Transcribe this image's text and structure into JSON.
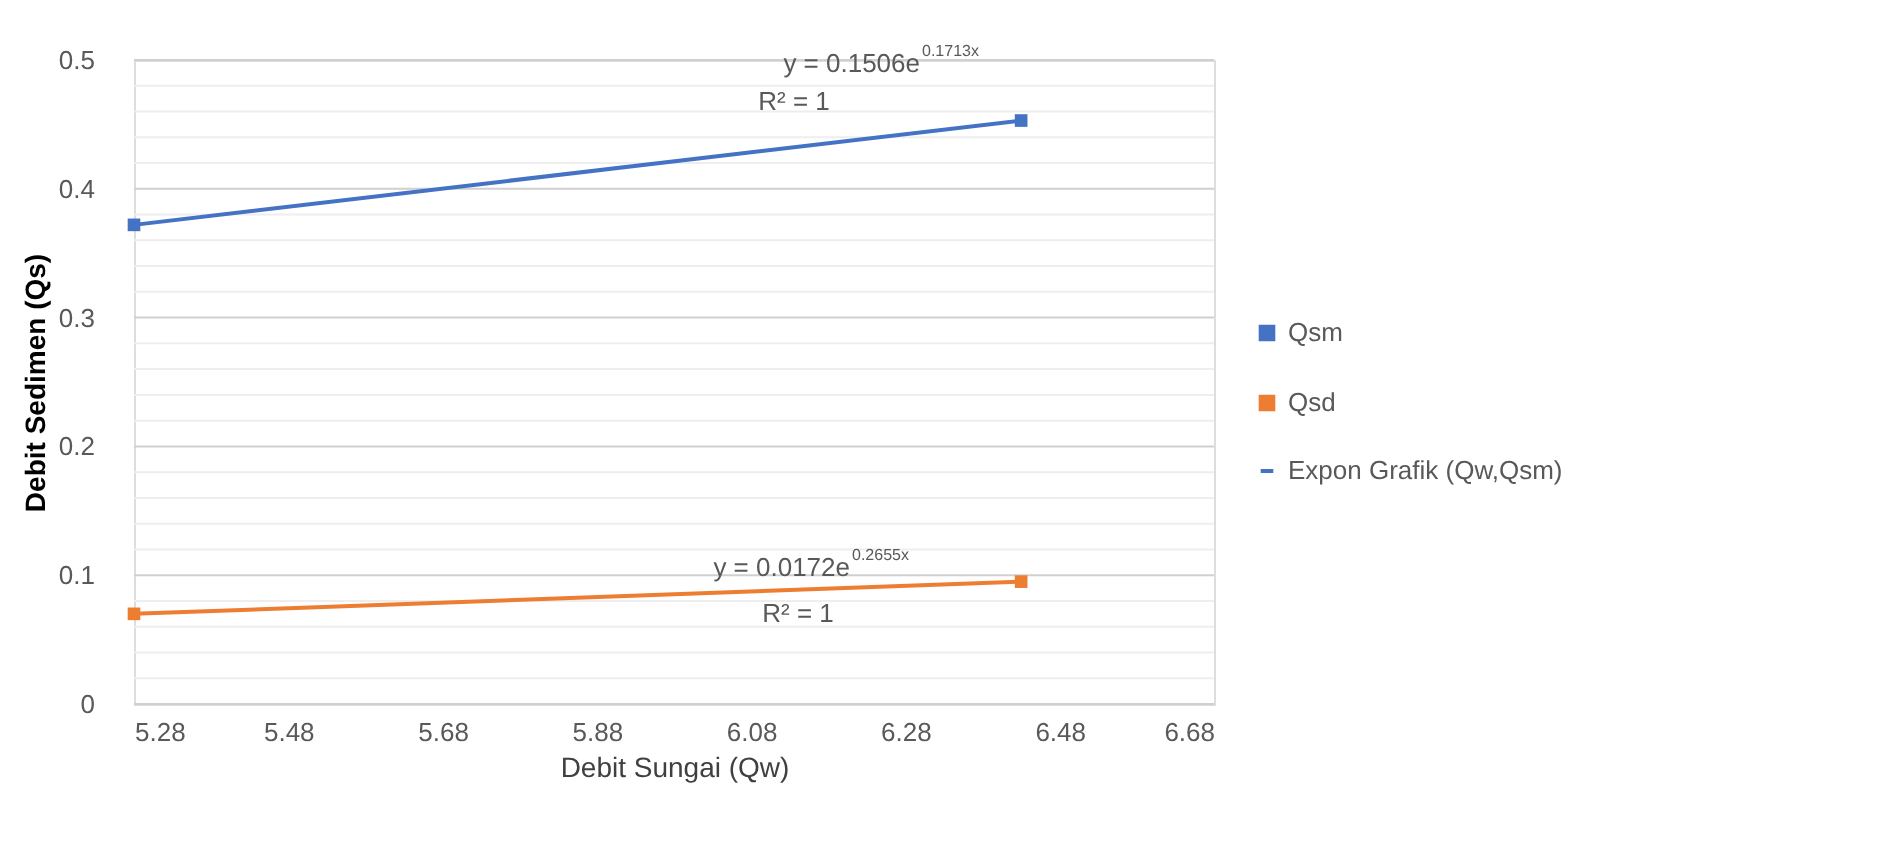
{
  "chart_data": {
    "type": "scatter",
    "xlabel": "Debit Sungai (Qw)",
    "ylabel": "Debit Sedimen (Qs)",
    "xlim": [
      5.28,
      6.68
    ],
    "xticks": [
      5.28,
      5.48,
      5.68,
      5.88,
      6.08,
      6.28,
      6.48,
      6.68
    ],
    "ylim": [
      0,
      0.5
    ],
    "yticks": [
      0,
      {
        "value": 0.02,
        "label": null
      },
      {
        "value": 0.04,
        "label": null
      },
      {
        "value": 0.06,
        "label": null
      },
      {
        "value": 0.08,
        "label": null
      },
      0.1,
      {
        "value": 0.12,
        "label": null
      },
      {
        "value": 0.14,
        "label": null
      },
      {
        "value": 0.16,
        "label": null
      },
      {
        "value": 0.18,
        "label": null
      },
      0.2,
      {
        "value": 0.22,
        "label": null
      },
      {
        "value": 0.24,
        "label": null
      },
      {
        "value": 0.26,
        "label": null
      },
      {
        "value": 0.28,
        "label": null
      },
      0.3,
      {
        "value": 0.32,
        "label": null
      },
      {
        "value": 0.34,
        "label": null
      },
      {
        "value": 0.36,
        "label": null
      },
      {
        "value": 0.38,
        "label": null
      },
      0.4,
      {
        "value": 0.42,
        "label": null
      },
      {
        "value": 0.44,
        "label": null
      },
      {
        "value": 0.46,
        "label": null
      },
      {
        "value": 0.48,
        "label": null
      },
      0.5
    ],
    "grid": "y",
    "legend": "right",
    "x": [
      5.28,
      6.43
    ],
    "series": [
      {
        "name": "Qsm",
        "color": "#4472c4",
        "marker": "square",
        "values": [
          0.372,
          0.453
        ]
      },
      {
        "name": "Qsd",
        "color": "#ed7d31",
        "marker": "square",
        "values": [
          0.07,
          0.095
        ]
      },
      {
        "name": "Expon Grafik (Qw,Qsm)",
        "type": "line",
        "marker": "none",
        "color": "#4472c4",
        "values": [
          0.372,
          0.453
        ]
      },
      {
        "type": "line",
        "marker": "none",
        "color": "#ed7d31",
        "values": [
          0.07,
          0.095
        ]
      }
    ],
    "annotations": [
      "y = 0.1506e$^{0.1713x}$",
      "R² = 1",
      "y = 0.0172e$^{0.2655x}$",
      "R² = 1"
    ]
  }
}
